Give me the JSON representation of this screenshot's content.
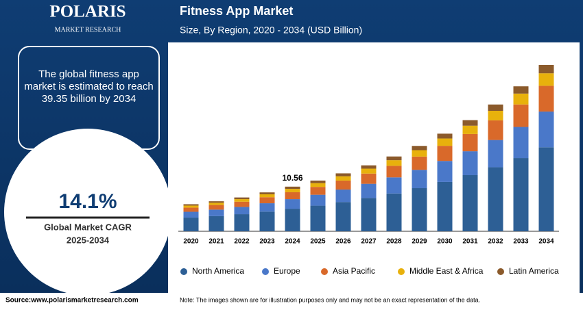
{
  "branding": {
    "name": "POLARIS",
    "tagline": "MARKET RESEARCH"
  },
  "sidebar": {
    "summary": "The global fitness app market is estimated to reach 39.35 billion by 2034",
    "cagr": "14.1%",
    "cagr_label": "Global Market CAGR",
    "cagr_period": "2025-2034"
  },
  "footer": {
    "source": "Source:www.polarismarketresearch.com",
    "note": "Note: The images shown are for illustration purposes only and may not be an exact representation of the data."
  },
  "chart_data": {
    "type": "stacked-bar",
    "title": "Fitness App Market",
    "subtitle": "Size, By Region, 2020 - 2034 (USD Billion)",
    "categories": [
      "2020",
      "2021",
      "2022",
      "2023",
      "2024",
      "2025",
      "2026",
      "2027",
      "2028",
      "2029",
      "2030",
      "2031",
      "2032",
      "2033",
      "2034"
    ],
    "series": [
      {
        "name": "North America",
        "color": "#2d5f95",
        "values": [
          3.23,
          3.59,
          4.04,
          4.65,
          5.33,
          6.06,
          6.92,
          7.88,
          8.94,
          10.2,
          11.67,
          13.28,
          15.15,
          17.32,
          19.87
        ]
      },
      {
        "name": "Europe",
        "color": "#4a78c9",
        "values": [
          1.38,
          1.53,
          1.72,
          1.98,
          2.27,
          2.58,
          2.95,
          3.35,
          3.81,
          4.34,
          4.97,
          5.65,
          6.45,
          7.37,
          8.46
        ]
      },
      {
        "name": "Asia Pacific",
        "color": "#d9692a",
        "values": [
          0.99,
          1.1,
          1.24,
          1.43,
          1.64,
          1.86,
          2.12,
          2.42,
          2.74,
          3.13,
          3.58,
          4.08,
          4.65,
          5.32,
          6.1
        ]
      },
      {
        "name": "Middle East & Africa",
        "color": "#e8b10c",
        "values": [
          0.48,
          0.53,
          0.6,
          0.69,
          0.79,
          0.9,
          1.03,
          1.17,
          1.33,
          1.52,
          1.73,
          1.97,
          2.25,
          2.57,
          2.95
        ]
      },
      {
        "name": "Latin America",
        "color": "#8b5a2b",
        "values": [
          0.32,
          0.35,
          0.4,
          0.45,
          0.53,
          0.6,
          0.68,
          0.78,
          0.88,
          1.01,
          1.15,
          1.32,
          1.5,
          1.72,
          1.97
        ]
      }
    ],
    "annotations": [
      {
        "category": "2024",
        "text": "10.56"
      }
    ],
    "legend": "bottom"
  }
}
